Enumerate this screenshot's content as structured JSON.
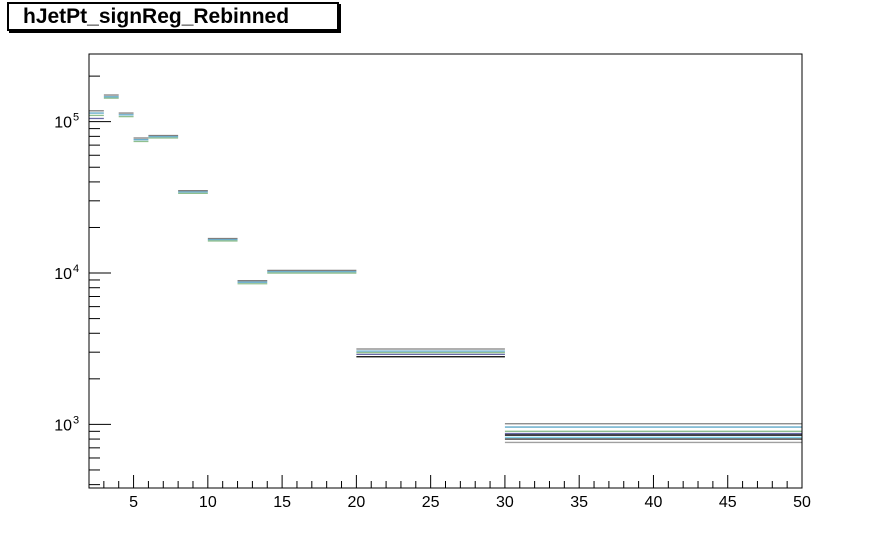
{
  "chart_data": {
    "type": "step",
    "title": "hJetPt_signReg_Rebinned",
    "xlabel": "",
    "ylabel": "",
    "xlim": [
      2,
      50
    ],
    "ylim": [
      380,
      280000
    ],
    "yscale": "log",
    "grid": false,
    "legend": "none",
    "x_ticks": [
      5,
      10,
      15,
      20,
      25,
      30,
      35,
      40,
      45,
      50
    ],
    "y_ticks": [
      {
        "value": 1000,
        "base": "10",
        "exp": "3"
      },
      {
        "value": 10000,
        "base": "10",
        "exp": "4"
      },
      {
        "value": 100000,
        "base": "10",
        "exp": "5"
      }
    ],
    "bins": [
      {
        "lo": 2,
        "hi": 3,
        "values": [
          118000,
          114000,
          110000,
          105000
        ]
      },
      {
        "lo": 3,
        "hi": 4,
        "values": [
          150000,
          146000,
          143000
        ]
      },
      {
        "lo": 4,
        "hi": 5,
        "values": [
          114000,
          111000,
          108000
        ]
      },
      {
        "lo": 5,
        "hi": 6,
        "values": [
          78000,
          76000,
          74000
        ]
      },
      {
        "lo": 6,
        "hi": 8,
        "values": [
          81000,
          79500,
          78000
        ]
      },
      {
        "lo": 8,
        "hi": 10,
        "values": [
          35000,
          34300,
          33600
        ]
      },
      {
        "lo": 10,
        "hi": 12,
        "values": [
          16900,
          16600,
          16300
        ]
      },
      {
        "lo": 12,
        "hi": 14,
        "values": [
          8900,
          8700,
          8500
        ]
      },
      {
        "lo": 14,
        "hi": 20,
        "values": [
          10400,
          10200,
          10000
        ]
      },
      {
        "lo": 20,
        "hi": 30,
        "values": [
          3150,
          3050,
          2980,
          2900,
          2800
        ]
      },
      {
        "lo": 30,
        "hi": 50,
        "values": [
          1010,
          960,
          900,
          870,
          850,
          820,
          800,
          760
        ]
      }
    ],
    "series_colors": [
      "#7f7f7f",
      "#5fa8c8",
      "#8fbf8f",
      "#6a6aa8",
      "#000000",
      "#7fd0e8",
      "#3a3a3a",
      "#a0a0a0"
    ]
  }
}
